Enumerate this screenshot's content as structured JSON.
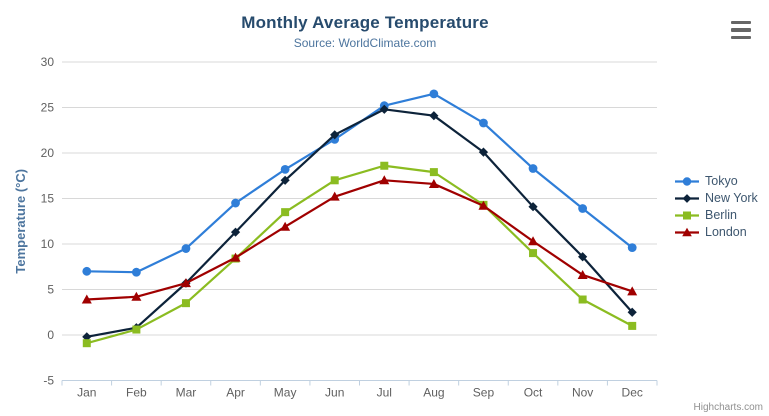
{
  "chart_data": {
    "type": "line",
    "title": "Monthly Average Temperature",
    "subtitle": "Source: WorldClimate.com",
    "xlabel": "",
    "ylabel": "Temperature (°C)",
    "ylim": [
      -5,
      30
    ],
    "ytick_step": 5,
    "yticks": [
      -5,
      0,
      5,
      10,
      15,
      20,
      25,
      30
    ],
    "grid": true,
    "legend_position": "right",
    "categories": [
      "Jan",
      "Feb",
      "Mar",
      "Apr",
      "May",
      "Jun",
      "Jul",
      "Aug",
      "Sep",
      "Oct",
      "Nov",
      "Dec"
    ],
    "series": [
      {
        "name": "Tokyo",
        "color": "#2f7ed8",
        "marker": "circle",
        "values": [
          7.0,
          6.9,
          9.5,
          14.5,
          18.2,
          21.5,
          25.2,
          26.5,
          23.3,
          18.3,
          13.9,
          9.6
        ]
      },
      {
        "name": "New York",
        "color": "#0d233a",
        "marker": "diamond",
        "values": [
          -0.2,
          0.8,
          5.7,
          11.3,
          17.0,
          22.0,
          24.8,
          24.1,
          20.1,
          14.1,
          8.6,
          2.5
        ]
      },
      {
        "name": "Berlin",
        "color": "#8bbc21",
        "marker": "square",
        "values": [
          -0.9,
          0.6,
          3.5,
          8.4,
          13.5,
          17.0,
          18.6,
          17.9,
          14.3,
          9.0,
          3.9,
          1.0
        ]
      },
      {
        "name": "London",
        "color": "#a00000",
        "marker": "triangle",
        "values": [
          3.9,
          4.2,
          5.7,
          8.5,
          11.9,
          15.2,
          17.0,
          16.6,
          14.2,
          10.3,
          6.6,
          4.8
        ]
      }
    ]
  },
  "colors": {
    "title": "#274b6d",
    "subtitle": "#4d759e",
    "axis_title": "#4d759e",
    "axis_labels": "#606060",
    "gridline": "#d8d8d8",
    "axis_line": "#c0d0e0",
    "legend_text": "#3e576f",
    "menu_icon": "#666666",
    "credit_text": "#909090"
  },
  "icons": {
    "menu": "hamburger-menu-icon"
  },
  "credit": "Highcharts.com"
}
